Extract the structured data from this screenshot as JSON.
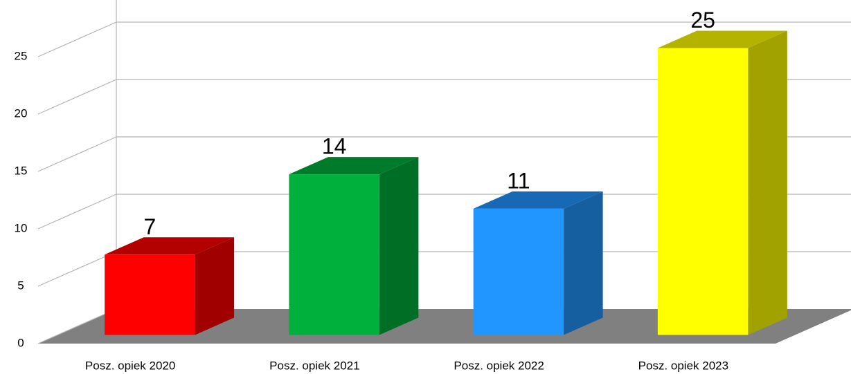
{
  "chart_data": {
    "type": "bar3d",
    "categories": [
      "Posz. opiek 2020",
      "Posz. opiek 2021",
      "Posz. opiek 2022",
      "Posz. opiek 2023"
    ],
    "values": [
      7,
      14,
      11,
      25
    ],
    "colors": [
      "#ff0000",
      "#00b03c",
      "#2196ff",
      "#ffff00"
    ],
    "ylim": [
      0,
      25
    ],
    "yticks": [
      0,
      5,
      10,
      15,
      20,
      25
    ],
    "grid": true
  }
}
